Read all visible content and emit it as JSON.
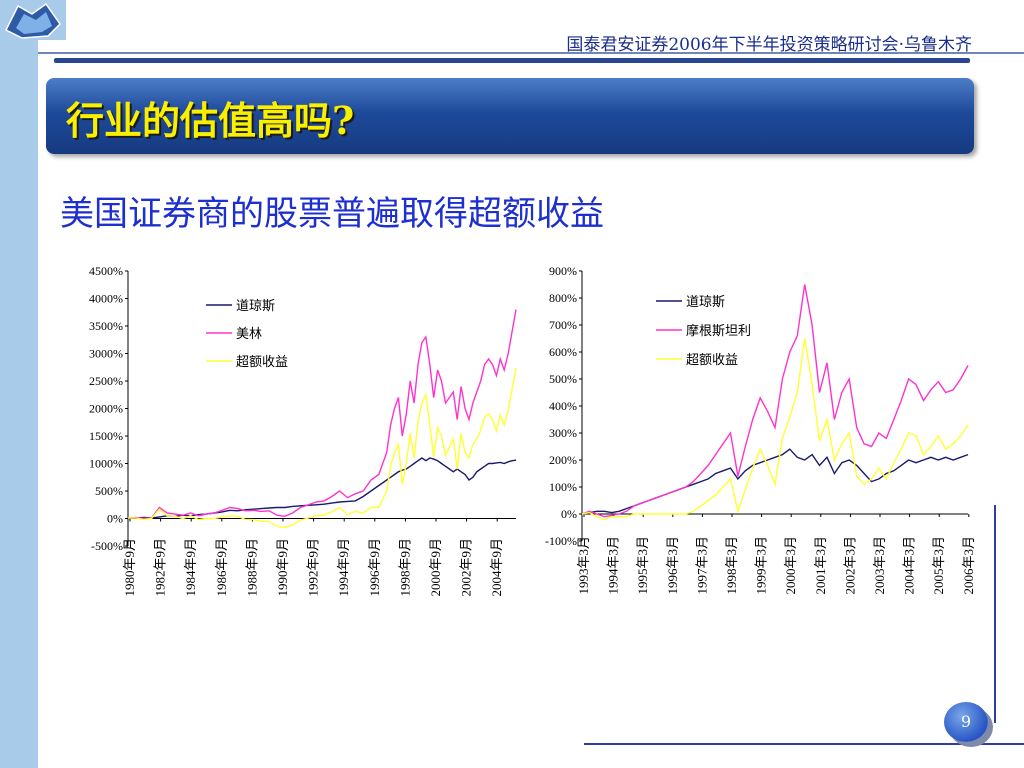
{
  "header": {
    "text": "国泰君安证券2006年下半年投资策略研讨会·乌鲁木齐"
  },
  "slide": {
    "title": "行业的估值高吗?",
    "subtitle": "美国证券商的股票普遍取得超额收益",
    "page_number": "9"
  },
  "colors": {
    "navy": "#1a1a6e",
    "magenta": "#ff33cc",
    "yellow": "#ffff33",
    "title_yellow": "#f8f000",
    "banner_blue": "#1e4a9a"
  },
  "chart_data": [
    {
      "type": "line",
      "title": "",
      "ylim": [
        -500,
        4500
      ],
      "y_ticks": [
        "4500%",
        "4000%",
        "3500%",
        "3000%",
        "2500%",
        "2000%",
        "1500%",
        "1000%",
        "500%",
        "0%",
        "-500%"
      ],
      "x_ticks": [
        "1980年9月",
        "1982年9月",
        "1984年9月",
        "1986年9月",
        "1988年9月",
        "1990年9月",
        "1992年9月",
        "1994年9月",
        "1996年9月",
        "1998年9月",
        "2000年9月",
        "2002年9月",
        "2004年9月"
      ],
      "x": [
        1980.75,
        1981.25,
        1981.75,
        1982.25,
        1982.75,
        1983.25,
        1983.75,
        1984.25,
        1984.75,
        1985.25,
        1985.75,
        1986.25,
        1986.75,
        1987.25,
        1987.75,
        1988.25,
        1988.75,
        1989.25,
        1989.75,
        1990.25,
        1990.75,
        1991.25,
        1991.75,
        1992.25,
        1992.75,
        1993.25,
        1993.75,
        1994.25,
        1994.75,
        1995.25,
        1995.75,
        1996.25,
        1996.75,
        1997.25,
        1997.5,
        1997.75,
        1998.0,
        1998.25,
        1998.5,
        1998.75,
        1999.0,
        1999.25,
        1999.5,
        1999.75,
        2000.0,
        2000.25,
        2000.5,
        2000.75,
        2001.0,
        2001.25,
        2001.5,
        2001.75,
        2002.0,
        2002.25,
        2002.5,
        2002.75,
        2003.0,
        2003.25,
        2003.5,
        2003.75,
        2004.0,
        2004.25,
        2004.5,
        2004.75,
        2005.0,
        2005.25,
        2005.5
      ],
      "series": [
        {
          "name": "道琼斯",
          "color": "#1a1a6e",
          "values": [
            0,
            10,
            20,
            10,
            30,
            50,
            40,
            60,
            50,
            70,
            80,
            100,
            120,
            150,
            140,
            160,
            170,
            180,
            190,
            200,
            200,
            220,
            230,
            240,
            250,
            260,
            280,
            300,
            310,
            320,
            400,
            500,
            600,
            700,
            750,
            800,
            850,
            880,
            900,
            950,
            1000,
            1050,
            1100,
            1050,
            1100,
            1080,
            1050,
            1000,
            950,
            900,
            850,
            900,
            850,
            800,
            700,
            750,
            850,
            900,
            950,
            1000,
            1000,
            1010,
            1020,
            1000,
            1030,
            1050,
            1060
          ]
        },
        {
          "name": "美林",
          "color": "#ff33cc",
          "values": [
            10,
            20,
            0,
            10,
            200,
            100,
            80,
            60,
            100,
            50,
            80,
            100,
            150,
            200,
            180,
            140,
            150,
            130,
            140,
            60,
            40,
            100,
            200,
            250,
            300,
            320,
            400,
            500,
            380,
            450,
            500,
            700,
            800,
            1200,
            1700,
            2000,
            2200,
            1500,
            1900,
            2500,
            2100,
            2800,
            3200,
            3300,
            2800,
            2200,
            2700,
            2500,
            2100,
            2200,
            2300,
            1800,
            2400,
            2000,
            1800,
            2100,
            2300,
            2500,
            2800,
            2900,
            2800,
            2600,
            2900,
            2700,
            3000,
            3400,
            3800
          ]
        },
        {
          "name": "超额收益",
          "color": "#ffff33",
          "values": [
            10,
            10,
            -20,
            0,
            170,
            50,
            40,
            0,
            50,
            -20,
            0,
            0,
            30,
            50,
            40,
            -20,
            -20,
            -50,
            -50,
            -140,
            -160,
            -120,
            -30,
            10,
            50,
            60,
            120,
            200,
            70,
            130,
            100,
            200,
            200,
            500,
            950,
            1200,
            1350,
            620,
            1000,
            1550,
            1100,
            1750,
            2100,
            2250,
            1700,
            1120,
            1650,
            1500,
            1150,
            1300,
            1450,
            900,
            1550,
            1200,
            1100,
            1350,
            1450,
            1600,
            1850,
            1900,
            1800,
            1590,
            1880,
            1700,
            1970,
            2350,
            2740
          ]
        }
      ]
    },
    {
      "type": "line",
      "title": "",
      "ylim": [
        -100,
        900
      ],
      "y_ticks": [
        "900%",
        "800%",
        "700%",
        "600%",
        "500%",
        "400%",
        "300%",
        "200%",
        "100%",
        "0%",
        "-100%"
      ],
      "x_ticks": [
        "1993年3月",
        "1994年3月",
        "1995年3月",
        "1996年3月",
        "1997年3月",
        "1998年3月",
        "1999年3月",
        "2000年3月",
        "2001年3月",
        "2002年3月",
        "2003年3月",
        "2004年3月",
        "2005年3月",
        "2006年3月"
      ],
      "x": [
        1993.25,
        1993.5,
        1993.75,
        1994.0,
        1994.25,
        1994.5,
        1994.75,
        1995.0,
        1995.25,
        1995.5,
        1995.75,
        1996.0,
        1996.25,
        1996.5,
        1996.75,
        1997.0,
        1997.25,
        1997.5,
        1997.75,
        1998.0,
        1998.25,
        1998.5,
        1998.75,
        1999.0,
        1999.25,
        1999.5,
        1999.75,
        2000.0,
        2000.25,
        2000.5,
        2000.75,
        2001.0,
        2001.25,
        2001.5,
        2001.75,
        2002.0,
        2002.25,
        2002.5,
        2002.75,
        2003.0,
        2003.25,
        2003.5,
        2003.75,
        2004.0,
        2004.25,
        2004.5,
        2004.75,
        2005.0,
        2005.25,
        2005.5,
        2005.75,
        2006.0,
        2006.25
      ],
      "series": [
        {
          "name": "道琼斯",
          "color": "#1a1a6e",
          "values": [
            0,
            5,
            10,
            10,
            5,
            10,
            20,
            30,
            40,
            50,
            60,
            70,
            80,
            90,
            100,
            110,
            120,
            130,
            150,
            160,
            170,
            130,
            160,
            180,
            190,
            200,
            210,
            220,
            240,
            210,
            200,
            220,
            180,
            210,
            150,
            190,
            200,
            180,
            150,
            120,
            130,
            150,
            160,
            180,
            200,
            190,
            200,
            210,
            200,
            210,
            200,
            210,
            220
          ]
        },
        {
          "name": "摩根斯坦利",
          "color": "#ff33cc",
          "values": [
            0,
            10,
            0,
            -10,
            -5,
            0,
            10,
            30,
            40,
            50,
            60,
            70,
            80,
            90,
            100,
            120,
            150,
            180,
            220,
            260,
            300,
            140,
            250,
            350,
            430,
            380,
            320,
            500,
            600,
            660,
            850,
            700,
            450,
            560,
            350,
            450,
            500,
            320,
            260,
            250,
            300,
            280,
            350,
            420,
            500,
            480,
            420,
            460,
            490,
            450,
            460,
            500,
            550
          ]
        },
        {
          "name": "超额收益",
          "color": "#ffff33",
          "values": [
            0,
            5,
            -10,
            -20,
            -10,
            -10,
            -10,
            0,
            0,
            0,
            0,
            0,
            0,
            0,
            0,
            10,
            30,
            50,
            70,
            100,
            130,
            10,
            90,
            170,
            240,
            180,
            110,
            280,
            360,
            450,
            650,
            480,
            270,
            350,
            200,
            260,
            300,
            140,
            110,
            130,
            170,
            130,
            190,
            240,
            300,
            290,
            220,
            250,
            290,
            240,
            260,
            290,
            330
          ]
        }
      ]
    }
  ]
}
